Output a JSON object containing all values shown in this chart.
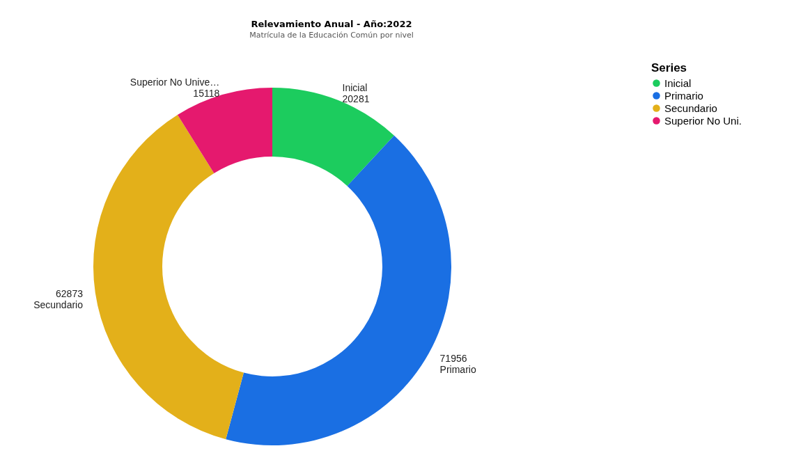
{
  "chart_data": {
    "type": "donut",
    "title": "Relevamiento Anual - Año:2022",
    "subtitle": "Matrícula de la Educación Común por nivel",
    "legend_title": "Series",
    "legend": "top right",
    "categories": [
      "Inicial",
      "Primario",
      "Secundario",
      "Superior No Uni."
    ],
    "values": [
      20281,
      71956,
      62873,
      15118
    ],
    "colors": [
      "#1ccc5e",
      "#1a6fe3",
      "#e3b01a",
      "#e5196e"
    ],
    "value_labels": [
      "Inicial\n20281",
      "71956\nPrimario",
      "62873\nSecundario",
      "Superior No Unive…\n15118"
    ]
  }
}
